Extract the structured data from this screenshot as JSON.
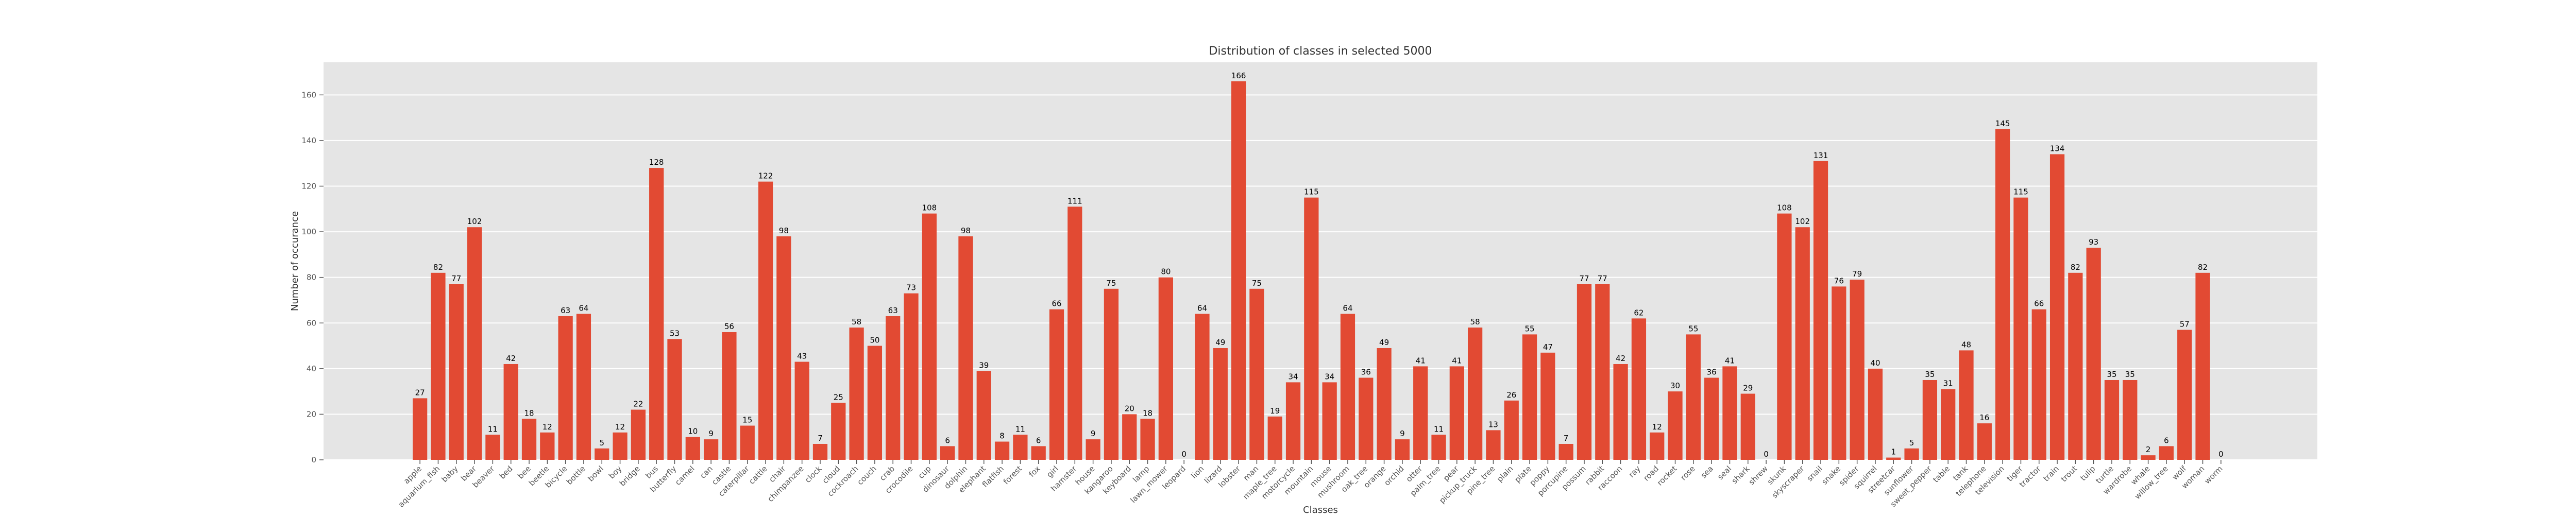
{
  "chart_data": {
    "type": "bar",
    "title": "Distribution of classes in selected 5000",
    "xlabel": "Classes",
    "ylabel": "Number of occurance",
    "color": "#e24a33",
    "grid": true,
    "ylim": [
      0,
      174.3
    ],
    "yticks": [
      0,
      20,
      40,
      60,
      80,
      100,
      120,
      140,
      160
    ],
    "categories": [
      "apple",
      "aquarium_fish",
      "baby",
      "bear",
      "beaver",
      "bed",
      "bee",
      "beetle",
      "bicycle",
      "bottle",
      "bowl",
      "boy",
      "bridge",
      "bus",
      "butterfly",
      "camel",
      "can",
      "castle",
      "caterpillar",
      "cattle",
      "chair",
      "chimpanzee",
      "clock",
      "cloud",
      "cockroach",
      "couch",
      "crab",
      "crocodile",
      "cup",
      "dinosaur",
      "dolphin",
      "elephant",
      "flatfish",
      "forest",
      "fox",
      "girl",
      "hamster",
      "house",
      "kangaroo",
      "keyboard",
      "lamp",
      "lawn_mower",
      "leopard",
      "lion",
      "lizard",
      "lobster",
      "man",
      "maple_tree",
      "motorcycle",
      "mountain",
      "mouse",
      "mushroom",
      "oak_tree",
      "orange",
      "orchid",
      "otter",
      "palm_tree",
      "pear",
      "pickup_truck",
      "pine_tree",
      "plain",
      "plate",
      "poppy",
      "porcupine",
      "possum",
      "rabbit",
      "raccoon",
      "ray",
      "road",
      "rocket",
      "rose",
      "sea",
      "seal",
      "shark",
      "shrew",
      "skunk",
      "skyscraper",
      "snail",
      "snake",
      "spider",
      "squirrel",
      "streetcar",
      "sunflower",
      "sweet_pepper",
      "table",
      "tank",
      "telephone",
      "television",
      "tiger",
      "tractor",
      "train",
      "trout",
      "tulip",
      "turtle",
      "wardrobe",
      "whale",
      "willow_tree",
      "wolf",
      "woman",
      "worm"
    ],
    "values": [
      27,
      82,
      77,
      102,
      11,
      42,
      18,
      12,
      63,
      64,
      5,
      12,
      22,
      128,
      53,
      10,
      9,
      56,
      15,
      122,
      98,
      43,
      7,
      25,
      58,
      50,
      63,
      73,
      108,
      6,
      98,
      39,
      8,
      11,
      6,
      66,
      111,
      9,
      75,
      20,
      18,
      80,
      0,
      64,
      49,
      166,
      75,
      19,
      34,
      115,
      34,
      64,
      36,
      49,
      9,
      41,
      11,
      41,
      58,
      13,
      26,
      55,
      47,
      7,
      77,
      77,
      42,
      62,
      12,
      30,
      55,
      36,
      41,
      29,
      0,
      108,
      102,
      131,
      76,
      79,
      40,
      1,
      5,
      35,
      31,
      48,
      16,
      145,
      115,
      66,
      134,
      82,
      93,
      35,
      35,
      2,
      6,
      57,
      82,
      0
    ]
  }
}
